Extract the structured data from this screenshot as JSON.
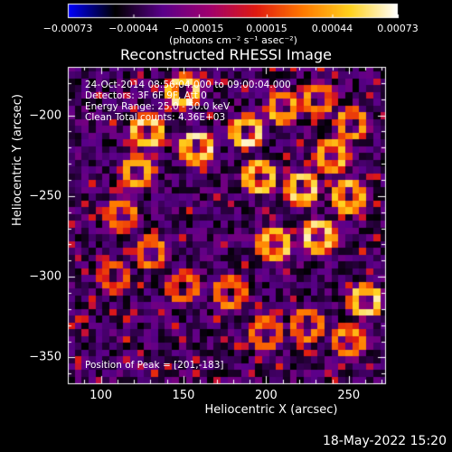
{
  "chart_data": {
    "type": "heatmap",
    "title": "Reconstructed RHESSI Image",
    "xlabel": "Heliocentric X (arcsec)",
    "ylabel": "Heliocentric Y (arcsec)",
    "xlim": [
      80,
      272
    ],
    "ylim": [
      -366,
      -170
    ],
    "x_ticks": [
      "100",
      "150",
      "200",
      "250"
    ],
    "y_ticks": [
      "−200",
      "−250",
      "−300",
      "−350"
    ],
    "x_tick_values": [
      100,
      150,
      200,
      250
    ],
    "y_tick_values": [
      -200,
      -250,
      -300,
      -350
    ],
    "colormap": [
      "#0000ff",
      "#000000",
      "#5a008a",
      "#a0006e",
      "#e01a10",
      "#ff7a00",
      "#ffd21e",
      "#ffffff"
    ],
    "colorbar": {
      "range": [
        -0.00073,
        0.00073
      ],
      "tick_labels": [
        "−0.00073",
        "−0.00044",
        "−0.00015",
        "0.00015",
        "0.00044",
        "0.00073"
      ],
      "tick_values": [
        -0.00073,
        -0.00044,
        -0.00015,
        0.00015,
        0.00044,
        0.00073
      ],
      "units": "(photons cm⁻² s⁻¹ asec⁻²)"
    },
    "annotations": {
      "time": "24-Oct-2014 08:56:04.000 to 09:00:04.000",
      "detectors": "Detectors: 3F 6F 9F, Att 0",
      "energy": "Energy Range: 25.0 - 50.0 keV",
      "clean": "Clean     Total counts: 4.36E+03",
      "peak": "Position of Peak = [201,-183]"
    },
    "peak": [
      201,
      -183
    ],
    "footer_date": "18-May-2022 15:20"
  }
}
